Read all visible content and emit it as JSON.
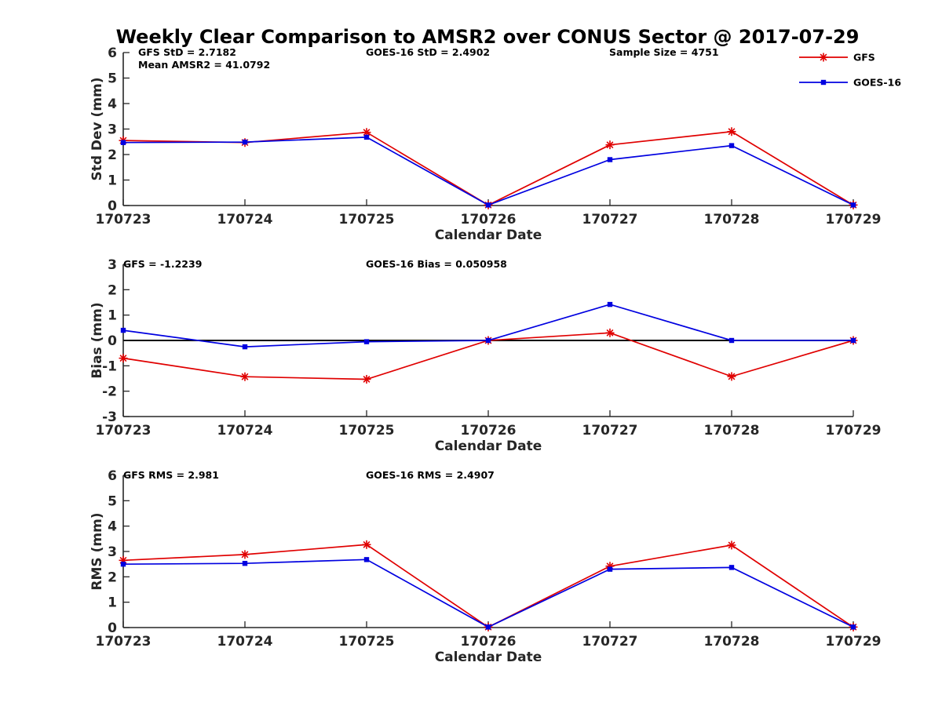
{
  "title": "Weekly Clear Comparison to AMSR2 over CONUS Sector @ 2017-07-29",
  "legend": {
    "placement": "top-right",
    "items": [
      {
        "label": "GFS",
        "color": "#e00000",
        "marker": "asterisk"
      },
      {
        "label": "GOES-16",
        "color": "#0000e0",
        "marker": "square"
      }
    ]
  },
  "chart_data": [
    {
      "type": "line",
      "id": "std",
      "ylabel": "Std Dev (mm)",
      "xlabel": "Calendar Date",
      "categories": [
        "170723",
        "170724",
        "170725",
        "170726",
        "170727",
        "170728",
        "170729"
      ],
      "ylim": [
        0,
        6
      ],
      "yticks": [
        "0",
        "1",
        "2",
        "3",
        "4",
        "5",
        "6"
      ],
      "annotations": [
        "GFS StD = 2.7182",
        "Mean AMSR2 = 41.0792",
        "GOES-16 StD = 2.4902",
        "Sample Size = 4751"
      ],
      "series": [
        {
          "name": "GFS",
          "color": "#e00000",
          "marker": "asterisk",
          "values": [
            2.55,
            2.47,
            2.87,
            0.02,
            2.38,
            2.9,
            0.02
          ]
        },
        {
          "name": "GOES-16",
          "color": "#0000e0",
          "marker": "square",
          "values": [
            2.47,
            2.49,
            2.68,
            0.02,
            1.8,
            2.35,
            0.02
          ]
        }
      ]
    },
    {
      "type": "line",
      "id": "bias",
      "ylabel": "Bias (mm)",
      "xlabel": "Calendar Date",
      "categories": [
        "170723",
        "170724",
        "170725",
        "170726",
        "170727",
        "170728",
        "170729"
      ],
      "ylim": [
        -3,
        3
      ],
      "yticks": [
        "-3",
        "-2",
        "-1",
        "0",
        "1",
        "2",
        "3"
      ],
      "zero_line": true,
      "annotations": [
        "GFS = -1.2239",
        "GOES-16 Bias  = 0.050958"
      ],
      "series": [
        {
          "name": "GFS",
          "color": "#e00000",
          "marker": "asterisk",
          "values": [
            -0.7,
            -1.43,
            -1.53,
            0.0,
            0.3,
            -1.42,
            0.0
          ]
        },
        {
          "name": "GOES-16",
          "color": "#0000e0",
          "marker": "square",
          "values": [
            0.4,
            -0.25,
            -0.05,
            0.0,
            1.42,
            0.0,
            0.0
          ]
        }
      ]
    },
    {
      "type": "line",
      "id": "rms",
      "ylabel": "RMS (mm)",
      "xlabel": "Calendar Date",
      "categories": [
        "170723",
        "170724",
        "170725",
        "170726",
        "170727",
        "170728",
        "170729"
      ],
      "ylim": [
        0,
        6
      ],
      "yticks": [
        "0",
        "1",
        "2",
        "3",
        "4",
        "5",
        "6"
      ],
      "annotations": [
        "GFS RMS = 2.981",
        "GOES-16 RMS = 2.4907"
      ],
      "series": [
        {
          "name": "GFS",
          "color": "#e00000",
          "marker": "asterisk",
          "values": [
            2.65,
            2.88,
            3.27,
            0.02,
            2.42,
            3.25,
            0.02
          ]
        },
        {
          "name": "GOES-16",
          "color": "#0000e0",
          "marker": "square",
          "values": [
            2.5,
            2.53,
            2.68,
            0.02,
            2.3,
            2.37,
            0.02
          ]
        }
      ]
    }
  ]
}
